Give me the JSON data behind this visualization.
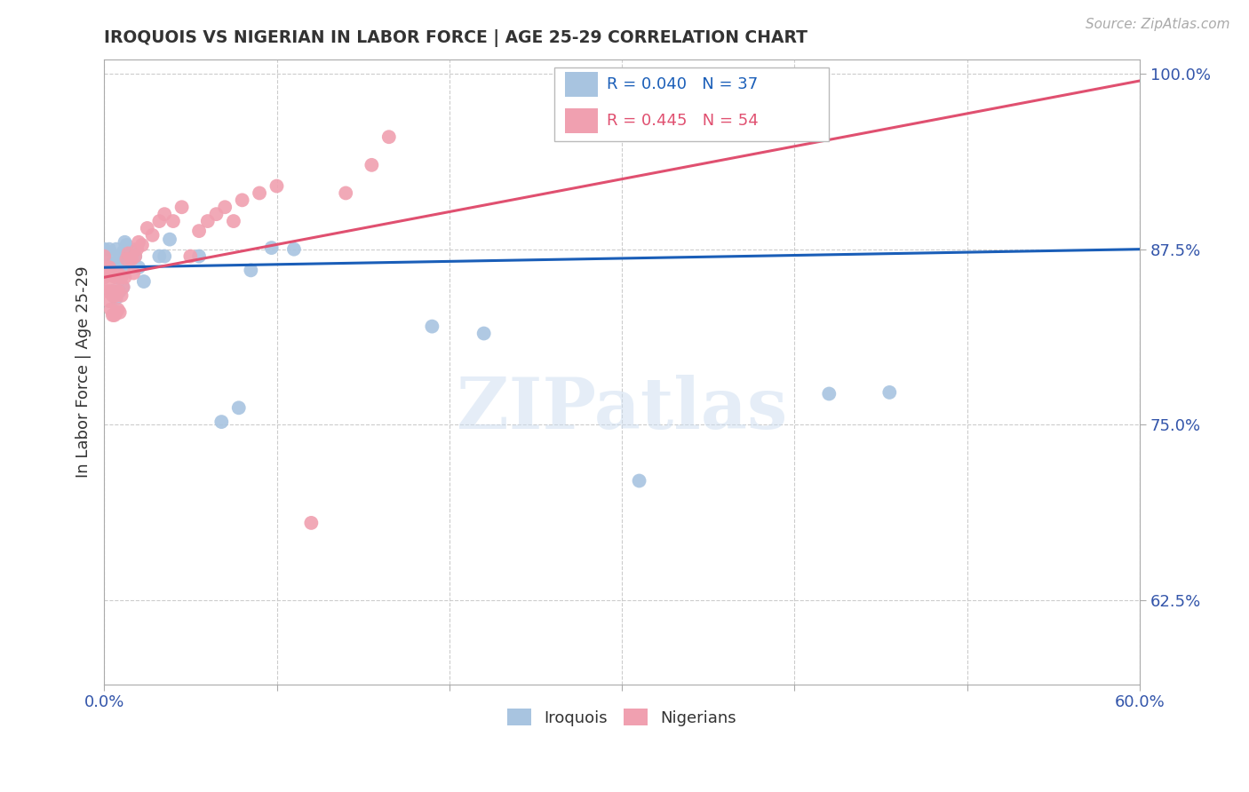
{
  "title": "IROQUOIS VS NIGERIAN IN LABOR FORCE | AGE 25-29 CORRELATION CHART",
  "source": "Source: ZipAtlas.com",
  "ylabel_label": "In Labor Force | Age 25-29",
  "watermark": "ZIPatlas",
  "legend_iroquois": "R = 0.040   N = 37",
  "legend_nigerians": "R = 0.445   N = 54",
  "legend_iroquois_label": "Iroquois",
  "legend_nigerians_label": "Nigerians",
  "iroquois_color": "#a8c4e0",
  "nigerians_color": "#f0a0b0",
  "iroquois_line_color": "#1a5eb8",
  "nigerians_line_color": "#e05070",
  "xlim": [
    0.0,
    0.6
  ],
  "ylim": [
    0.565,
    1.01
  ],
  "xticks": [
    0.0,
    0.1,
    0.2,
    0.3,
    0.4,
    0.5,
    0.6
  ],
  "xticklabels": [
    "0.0%",
    "",
    "",
    "",
    "",
    "",
    "60.0%"
  ],
  "ytick_values": [
    0.625,
    0.75,
    0.875,
    1.0
  ],
  "ytick_labels": [
    "62.5%",
    "75.0%",
    "87.5%",
    "100.0%"
  ],
  "title_color": "#333333",
  "tick_color": "#3355aa",
  "iroquois_line_y0": 0.862,
  "iroquois_line_y1": 0.875,
  "nigerians_line_y0": 0.855,
  "nigerians_line_y1": 0.995,
  "iroquois_points_x": [
    0.0,
    0.0,
    0.003,
    0.003,
    0.005,
    0.005,
    0.007,
    0.007,
    0.007,
    0.007,
    0.009,
    0.009,
    0.009,
    0.011,
    0.011,
    0.011,
    0.012,
    0.013,
    0.014,
    0.015,
    0.018,
    0.02,
    0.023,
    0.032,
    0.035,
    0.038,
    0.055,
    0.068,
    0.078,
    0.085,
    0.097,
    0.11,
    0.19,
    0.22,
    0.31,
    0.42,
    0.455
  ],
  "iroquois_points_y": [
    0.855,
    0.875,
    0.87,
    0.875,
    0.845,
    0.865,
    0.84,
    0.855,
    0.865,
    0.875,
    0.845,
    0.858,
    0.87,
    0.848,
    0.86,
    0.873,
    0.88,
    0.878,
    0.865,
    0.875,
    0.87,
    0.862,
    0.852,
    0.87,
    0.87,
    0.882,
    0.87,
    0.752,
    0.762,
    0.86,
    0.876,
    0.875,
    0.82,
    0.815,
    0.71,
    0.772,
    0.773
  ],
  "nigerians_points_x": [
    0.0,
    0.0,
    0.001,
    0.002,
    0.002,
    0.003,
    0.003,
    0.003,
    0.004,
    0.004,
    0.004,
    0.005,
    0.005,
    0.005,
    0.006,
    0.006,
    0.007,
    0.007,
    0.007,
    0.008,
    0.008,
    0.008,
    0.009,
    0.01,
    0.01,
    0.011,
    0.012,
    0.013,
    0.014,
    0.016,
    0.017,
    0.018,
    0.019,
    0.02,
    0.022,
    0.025,
    0.028,
    0.032,
    0.035,
    0.04,
    0.045,
    0.05,
    0.055,
    0.06,
    0.065,
    0.07,
    0.075,
    0.08,
    0.09,
    0.1,
    0.12,
    0.14,
    0.155,
    0.165
  ],
  "nigerians_points_y": [
    0.855,
    0.87,
    0.862,
    0.845,
    0.858,
    0.838,
    0.85,
    0.862,
    0.832,
    0.845,
    0.858,
    0.828,
    0.842,
    0.856,
    0.828,
    0.842,
    0.83,
    0.842,
    0.855,
    0.832,
    0.845,
    0.858,
    0.83,
    0.842,
    0.855,
    0.848,
    0.855,
    0.868,
    0.872,
    0.868,
    0.858,
    0.87,
    0.875,
    0.88,
    0.878,
    0.89,
    0.885,
    0.895,
    0.9,
    0.895,
    0.905,
    0.87,
    0.888,
    0.895,
    0.9,
    0.905,
    0.895,
    0.91,
    0.915,
    0.92,
    0.68,
    0.915,
    0.935,
    0.955
  ]
}
